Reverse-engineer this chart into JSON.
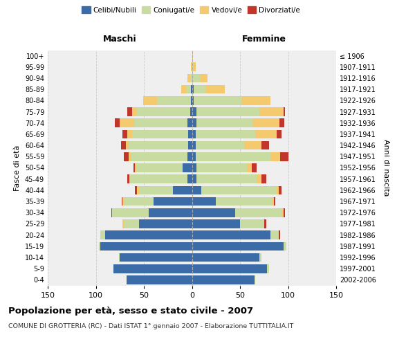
{
  "age_groups": [
    "0-4",
    "5-9",
    "10-14",
    "15-19",
    "20-24",
    "25-29",
    "30-34",
    "35-39",
    "40-44",
    "45-49",
    "50-54",
    "55-59",
    "60-64",
    "65-69",
    "70-74",
    "75-79",
    "80-84",
    "85-89",
    "90-94",
    "95-99",
    "100+"
  ],
  "birth_years": [
    "2002-2006",
    "1997-2001",
    "1992-1996",
    "1987-1991",
    "1982-1986",
    "1977-1981",
    "1972-1976",
    "1967-1971",
    "1962-1966",
    "1957-1961",
    "1952-1956",
    "1947-1951",
    "1942-1946",
    "1937-1941",
    "1932-1936",
    "1927-1931",
    "1922-1926",
    "1917-1921",
    "1912-1916",
    "1907-1911",
    "≤ 1906"
  ],
  "male_celibi": [
    68,
    82,
    75,
    95,
    90,
    55,
    45,
    40,
    20,
    5,
    10,
    5,
    4,
    4,
    5,
    2,
    1,
    1,
    0,
    0,
    0
  ],
  "male_coniugati": [
    0,
    0,
    1,
    2,
    5,
    15,
    38,
    30,
    35,
    60,
    48,
    58,
    62,
    58,
    55,
    55,
    35,
    5,
    2,
    0,
    0
  ],
  "male_vedovi": [
    0,
    0,
    0,
    0,
    0,
    2,
    0,
    2,
    2,
    0,
    1,
    3,
    3,
    5,
    15,
    5,
    15,
    5,
    3,
    1,
    0
  ],
  "male_divorziati": [
    0,
    0,
    0,
    0,
    0,
    0,
    1,
    1,
    2,
    2,
    2,
    5,
    5,
    5,
    5,
    5,
    0,
    0,
    0,
    0,
    0
  ],
  "female_celibi": [
    65,
    78,
    70,
    95,
    82,
    50,
    45,
    25,
    10,
    5,
    5,
    4,
    4,
    4,
    5,
    5,
    2,
    2,
    0,
    0,
    0
  ],
  "female_coniugati": [
    1,
    2,
    2,
    3,
    8,
    25,
    48,
    58,
    78,
    62,
    52,
    78,
    50,
    62,
    58,
    65,
    50,
    12,
    8,
    2,
    0
  ],
  "female_vedovi": [
    0,
    0,
    0,
    0,
    0,
    0,
    2,
    2,
    2,
    5,
    5,
    10,
    18,
    22,
    28,
    25,
    30,
    20,
    8,
    2,
    1
  ],
  "female_divorziati": [
    0,
    0,
    0,
    0,
    2,
    2,
    2,
    2,
    3,
    5,
    5,
    8,
    8,
    5,
    5,
    2,
    0,
    0,
    0,
    0,
    0
  ],
  "colors": {
    "celibi": "#3c6ca8",
    "coniugati": "#c8dba0",
    "vedovi": "#f5c96e",
    "divorziati": "#c0362a"
  },
  "title": "Popolazione per età, sesso e stato civile - 2007",
  "subtitle": "COMUNE DI GROTTERIA (RC) - Dati ISTAT 1° gennaio 2007 - Elaborazione TUTTITALIA.IT",
  "xlabel_left": "Maschi",
  "xlabel_right": "Femmine",
  "ylabel_left": "Fasce di età",
  "ylabel_right": "Anni di nascita",
  "xlim": 150,
  "bg_color": "#efefef",
  "grid_color": "#cccccc"
}
